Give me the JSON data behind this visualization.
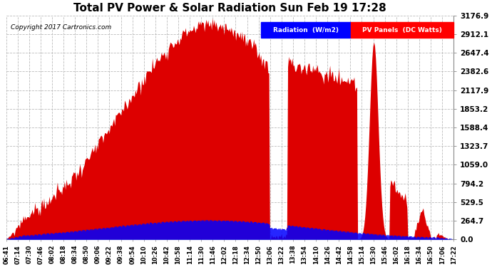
{
  "title": "Total PV Power & Solar Radiation Sun Feb 19 17:28",
  "copyright": "Copyright 2017 Cartronics.com",
  "legend_labels": [
    "Radiation  (W/m2)",
    "PV Panels  (DC Watts)"
  ],
  "legend_colors": [
    "blue",
    "red"
  ],
  "yticks": [
    0.0,
    264.7,
    529.5,
    794.2,
    1059.0,
    1323.7,
    1588.4,
    1853.2,
    2117.9,
    2382.6,
    2647.4,
    2912.1,
    3176.9
  ],
  "ymax": 3176.9,
  "ymin": 0.0,
  "background_color": "#ffffff",
  "plot_bg_color": "#ffffff",
  "grid_color": "#bbbbbb",
  "fill_color_pv": "#dd0000",
  "fill_color_radiation": "blue",
  "x_labels": [
    "06:41",
    "07:14",
    "07:30",
    "07:46",
    "08:02",
    "08:18",
    "08:34",
    "08:50",
    "09:06",
    "09:22",
    "09:38",
    "09:54",
    "10:10",
    "10:26",
    "10:42",
    "10:58",
    "11:14",
    "11:30",
    "11:46",
    "12:02",
    "12:18",
    "12:34",
    "12:50",
    "13:06",
    "13:22",
    "13:38",
    "13:54",
    "14:10",
    "14:26",
    "14:42",
    "14:58",
    "15:14",
    "15:30",
    "15:46",
    "16:02",
    "16:18",
    "16:34",
    "16:50",
    "17:06",
    "17:22"
  ],
  "n_points": 500,
  "rad_scale": 264.7,
  "figsize": [
    6.9,
    3.75
  ],
  "dpi": 100
}
